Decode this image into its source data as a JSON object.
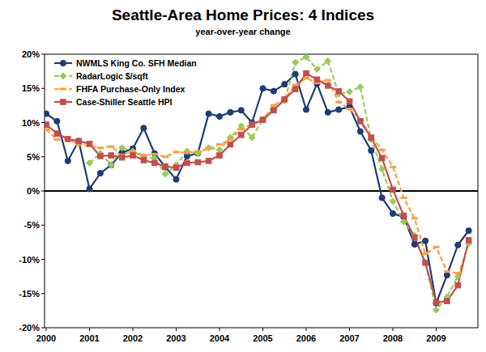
{
  "chart_data": {
    "type": "line",
    "title": "Seattle-Area Home Prices: 4 Indices",
    "subtitle": "year-over-year change",
    "categories": [
      "2000",
      null,
      null,
      null,
      "2001",
      null,
      null,
      null,
      "2002",
      null,
      null,
      null,
      "2003",
      null,
      null,
      null,
      "2004",
      null,
      null,
      null,
      "2005",
      null,
      null,
      null,
      "2006",
      null,
      null,
      null,
      "2007",
      null,
      null,
      null,
      "2008",
      null,
      null,
      null,
      "2009",
      null,
      null,
      null
    ],
    "series": [
      {
        "name": "NWMLS King Co. SFH Median",
        "color": "#1f3c74",
        "marker": "circle",
        "line_style": "solid",
        "values": [
          11.3,
          10.2,
          4.4,
          7.3,
          0.3,
          2.6,
          3.8,
          5.6,
          6.2,
          9.2,
          5.5,
          3.5,
          1.7,
          5.1,
          5.5,
          11.3,
          10.9,
          11.5,
          11.8,
          10.0,
          15.0,
          14.6,
          15.6,
          17.1,
          11.9,
          15.7,
          11.5,
          11.9,
          12.3,
          8.7,
          5.9,
          -1.0,
          -3.3,
          -3.8,
          -7.8,
          -7.3,
          -16.4,
          -12.3,
          -7.9,
          -5.8
        ]
      },
      {
        "name": "RadarLogic $/sqft",
        "color": "#9bc95b",
        "marker": "diamond",
        "line_style": "dashed",
        "values": [
          null,
          null,
          null,
          null,
          4.1,
          5.5,
          3.8,
          6.3,
          5.8,
          5.0,
          4.8,
          2.5,
          3.8,
          5.8,
          5.5,
          6.3,
          6.0,
          7.8,
          9.5,
          7.8,
          10.5,
          12.0,
          13.2,
          18.8,
          19.6,
          17.8,
          19.0,
          14.2,
          14.5,
          15.2,
          7.5,
          3.2,
          -1.5,
          -4.5,
          -6.5,
          -10.5,
          -17.4,
          -15.5,
          -12.5,
          -7.7
        ]
      },
      {
        "name": "FHFA Purchase-Only Index",
        "color": "#f7a14c",
        "marker": "dash",
        "line_style": "dashed",
        "values": [
          9.0,
          7.5,
          7.6,
          6.8,
          6.6,
          6.3,
          6.5,
          5.3,
          5.8,
          5.2,
          5.4,
          5.0,
          5.7,
          5.6,
          5.8,
          6.2,
          6.8,
          7.5,
          9.0,
          9.8,
          10.5,
          12.5,
          13.5,
          15.5,
          16.5,
          15.8,
          16.2,
          13.0,
          12.0,
          10.5,
          8.0,
          6.0,
          3.5,
          -1.0,
          -4.0,
          -9.2,
          -8.2,
          -11.8,
          -12.0,
          null
        ]
      },
      {
        "name": "Case-Shiller Seattle HPI",
        "color": "#c0504d",
        "marker": "square",
        "line_style": "solid",
        "values": [
          9.7,
          8.4,
          7.6,
          7.3,
          6.9,
          5.1,
          5.2,
          4.9,
          5.2,
          4.5,
          4.1,
          3.6,
          3.4,
          4.1,
          4.2,
          4.4,
          5.2,
          6.8,
          8.2,
          9.7,
          10.4,
          11.8,
          13.4,
          14.9,
          17.2,
          16.3,
          15.4,
          14.6,
          13.1,
          10.2,
          7.8,
          4.8,
          0.2,
          -3.6,
          -6.8,
          -10.5,
          -16.3,
          -16.1,
          -13.8,
          -7.2
        ]
      }
    ],
    "ylim": [
      -20,
      20
    ],
    "yticks": [
      {
        "value": -20,
        "label": "-20%"
      },
      {
        "value": -15,
        "label": "-15%"
      },
      {
        "value": -10,
        "label": "-10%"
      },
      {
        "value": -5,
        "label": "-5%"
      },
      {
        "value": 0,
        "label": "0%"
      },
      {
        "value": 5,
        "label": "5%"
      },
      {
        "value": 10,
        "label": "10%"
      },
      {
        "value": 15,
        "label": "15%"
      },
      {
        "value": 20,
        "label": "20%"
      }
    ],
    "grid": false,
    "legend": "upper-left"
  }
}
